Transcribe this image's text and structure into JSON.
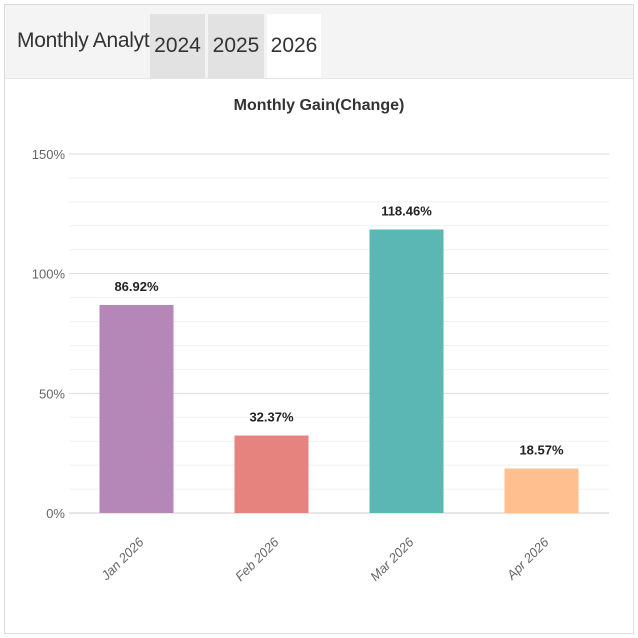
{
  "header": {
    "title": "Monthly Analytics",
    "tabs": [
      {
        "label": "2024",
        "active": false
      },
      {
        "label": "2025",
        "active": false
      },
      {
        "label": "2026",
        "active": true
      }
    ]
  },
  "chart_data": {
    "type": "bar",
    "title": "Monthly Gain(Change)",
    "categories": [
      "Jan 2026",
      "Feb 2026",
      "Mar 2026",
      "Apr 2026"
    ],
    "values": [
      86.92,
      32.37,
      118.46,
      18.57
    ],
    "data_labels": [
      "86.92%",
      "32.37%",
      "118.46%",
      "18.57%"
    ],
    "colors": [
      "#b586b8",
      "#e6837f",
      "#5bb7b4",
      "#ffbf8f"
    ],
    "ylim": [
      0,
      150
    ],
    "yticks": [
      0,
      50,
      100,
      150
    ],
    "ytick_labels": [
      "0%",
      "50%",
      "100%",
      "150%"
    ],
    "xlabel": "",
    "ylabel": "",
    "grid": true,
    "legend": "none"
  }
}
